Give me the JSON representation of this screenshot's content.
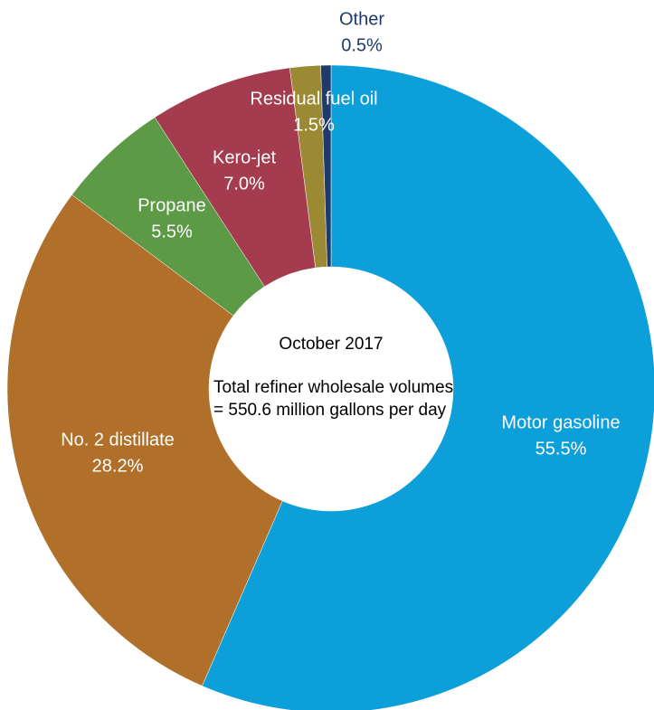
{
  "chart_data": {
    "type": "donut",
    "categories": [
      "Motor gasoline",
      "No. 2 distillate",
      "Propane",
      "Kero-jet",
      "Residual fuel oil",
      "Other"
    ],
    "values": [
      55.5,
      28.2,
      5.5,
      7.0,
      1.5,
      0.5
    ],
    "value_labels": [
      "55.5%",
      "28.2%",
      "5.5%",
      "7.0%",
      "1.5%",
      "0.5%"
    ],
    "colors": [
      "#0c9fd9",
      "#b0702a",
      "#5c9a46",
      "#a43b4e",
      "#9b8a33",
      "#1f3a6b"
    ],
    "annotations": [
      "October 2017",
      "Total refiner wholesale volumes = 550.6 million gallons per day"
    ]
  }
}
